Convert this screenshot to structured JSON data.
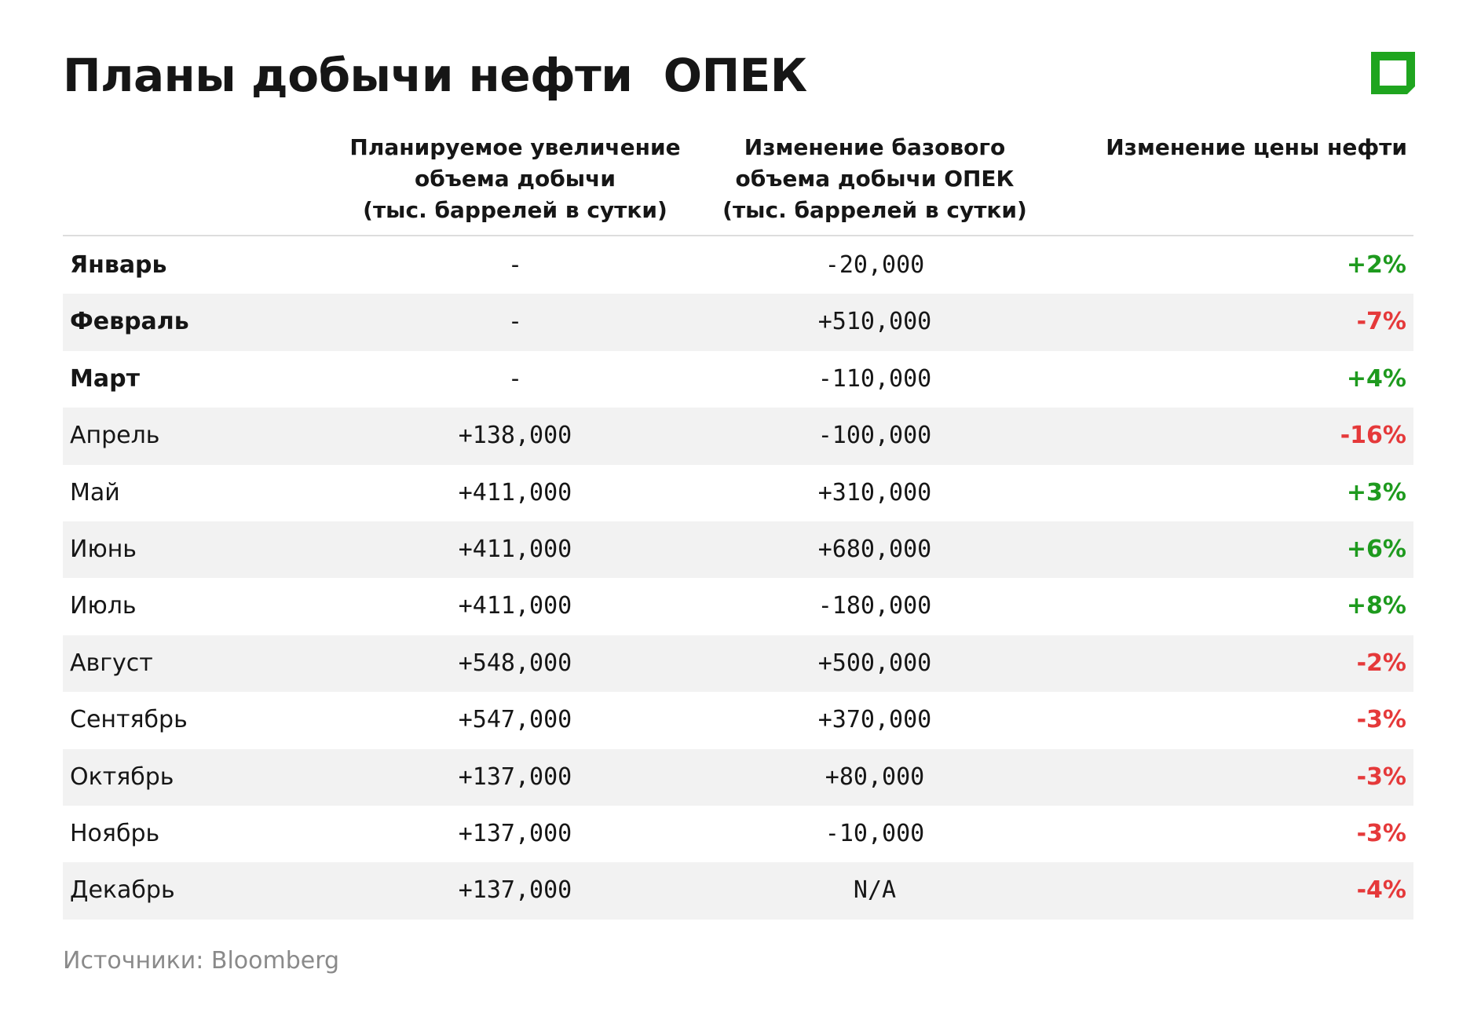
{
  "header": {
    "title": "Планы добычи нефти  ОПЕК"
  },
  "table": {
    "columns": [
      [
        "Планируемое увеличение",
        "объема добычи",
        "(тыс. баррелей в сутки)"
      ],
      [
        "Изменение базового",
        "объема добычи ОПЕК",
        "(тыс. баррелей в сутки)"
      ],
      [
        "Изменение цены нефти"
      ]
    ],
    "rows": [
      [
        "Январь",
        "-",
        "-20,000",
        "+2%"
      ],
      [
        "Февраль",
        "-",
        "+510,000",
        "-7%"
      ],
      [
        "Март",
        "-",
        "-110,000",
        "+4%"
      ],
      [
        "Апрель",
        "+138,000",
        "-100,000",
        "-16%"
      ],
      [
        "Май",
        "+411,000",
        "+310,000",
        "+3%"
      ],
      [
        "Июнь",
        "+411,000",
        "+680,000",
        "+6%"
      ],
      [
        "Июль",
        "+411,000",
        "-180,000",
        "+8%"
      ],
      [
        "Август",
        "+548,000",
        "+500,000",
        "-2%"
      ],
      [
        "Сентябрь",
        "+547,000",
        "+370,000",
        "-3%"
      ],
      [
        "Октябрь",
        "+137,000",
        "+80,000",
        "-3%"
      ],
      [
        "Ноябрь",
        "+137,000",
        "-10,000",
        "-3%"
      ],
      [
        "Декабрь",
        "+137,000",
        "N/A",
        "-4%"
      ]
    ]
  },
  "footer": {
    "source": "Источники: Bloomberg"
  }
}
